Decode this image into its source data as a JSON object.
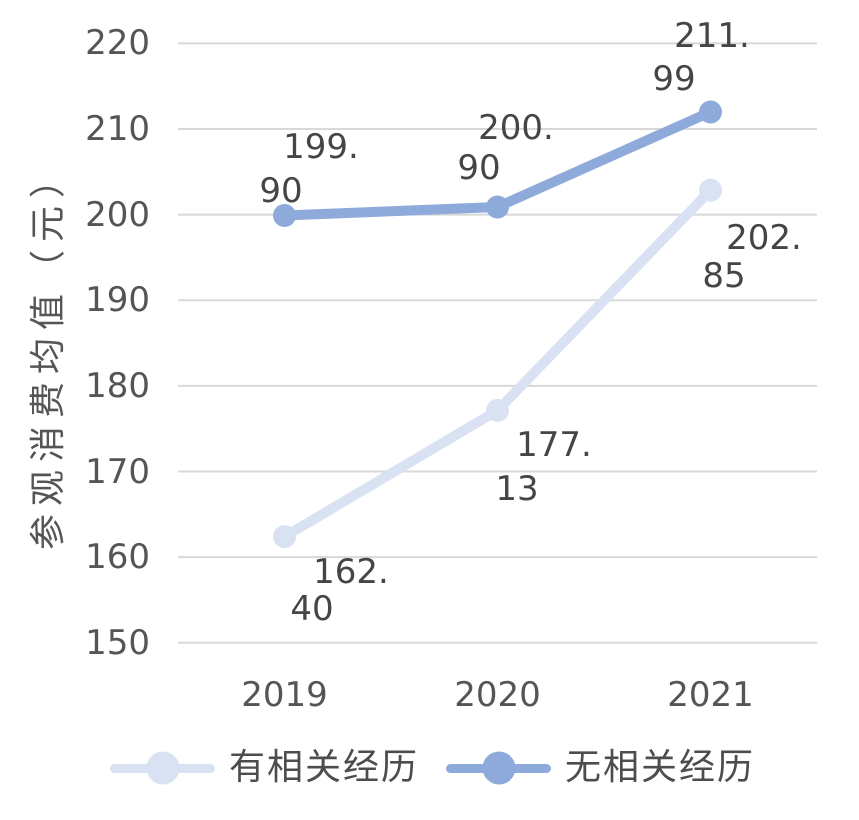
{
  "chart_data": {
    "type": "line",
    "title": "",
    "xlabel": "",
    "ylabel": "参观消费均值（元）",
    "categories": [
      "2019",
      "2020",
      "2021"
    ],
    "series": [
      {
        "name": "有相关经历",
        "values": [
          162.4,
          177.13,
          202.85
        ],
        "data_labels": [
          "162.40",
          "177.13",
          "202.85"
        ],
        "color": "#D9E2F3",
        "label_pos_hints": [
          [
            [
              351,
              572
            ],
            [
              312,
              609
            ]
          ],
          [
            [
              554,
              445
            ],
            [
              517,
              489
            ]
          ],
          [
            [
              764,
              238
            ],
            [
              724,
              276
            ]
          ]
        ]
      },
      {
        "name": "无相关经历",
        "values": [
          199.9,
          200.9,
          211.99
        ],
        "data_labels": [
          "199.90",
          "200.90",
          "211.99"
        ],
        "color": "#8EAADB",
        "label_pos_hints": [
          [
            [
              321,
              147
            ],
            [
              281,
              191
            ]
          ],
          [
            [
              516,
              128
            ],
            [
              479,
              168
            ]
          ],
          [
            [
              712,
              36
            ],
            [
              674,
              79
            ]
          ]
        ]
      }
    ],
    "ylim": [
      150,
      220
    ],
    "ytick_step": 10,
    "yticks": [
      220,
      210,
      200,
      190,
      180,
      170,
      160,
      150
    ],
    "grid": "horizontal-only",
    "legend_position": "bottom",
    "gridline_color": "#D8D8D8",
    "axis_text_color": "#555555",
    "label_text_color": "#454545",
    "background": "#FFFFFF"
  }
}
